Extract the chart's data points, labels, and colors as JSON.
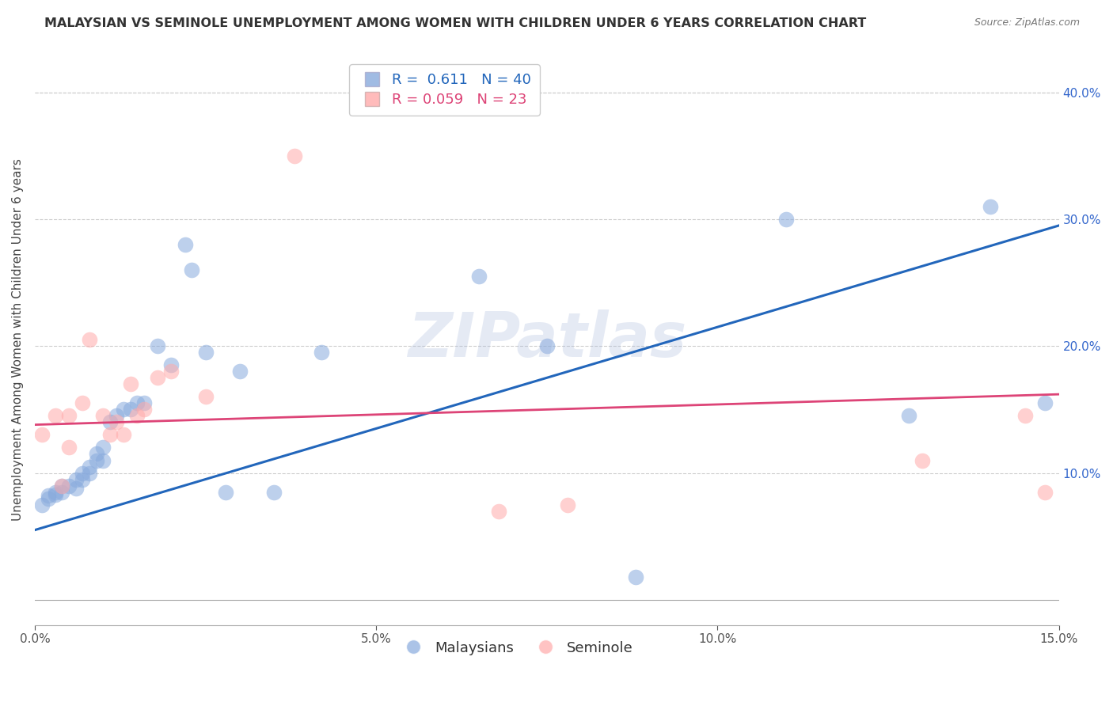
{
  "title": "MALAYSIAN VS SEMINOLE UNEMPLOYMENT AMONG WOMEN WITH CHILDREN UNDER 6 YEARS CORRELATION CHART",
  "source": "Source: ZipAtlas.com",
  "ylabel": "Unemployment Among Women with Children Under 6 years",
  "xlim": [
    0.0,
    0.15
  ],
  "ylim": [
    -0.02,
    0.43
  ],
  "yplot_min": 0.0,
  "yticks": [
    0.1,
    0.2,
    0.3,
    0.4
  ],
  "xticks": [
    0.0,
    0.05,
    0.1,
    0.15
  ],
  "blue_R": "0.611",
  "blue_N": "40",
  "pink_R": "0.059",
  "pink_N": "23",
  "blue_color": "#88aadd",
  "pink_color": "#ffaaaa",
  "blue_line_color": "#2266bb",
  "pink_line_color": "#dd4477",
  "watermark": "ZIPatlas",
  "blue_scatter_x": [
    0.001,
    0.002,
    0.002,
    0.003,
    0.003,
    0.004,
    0.004,
    0.005,
    0.006,
    0.006,
    0.007,
    0.007,
    0.008,
    0.008,
    0.009,
    0.009,
    0.01,
    0.01,
    0.011,
    0.012,
    0.013,
    0.014,
    0.015,
    0.016,
    0.018,
    0.02,
    0.022,
    0.023,
    0.025,
    0.028,
    0.03,
    0.035,
    0.042,
    0.065,
    0.075,
    0.088,
    0.11,
    0.128,
    0.14,
    0.148
  ],
  "blue_scatter_y": [
    0.075,
    0.08,
    0.082,
    0.083,
    0.085,
    0.085,
    0.09,
    0.09,
    0.088,
    0.095,
    0.095,
    0.1,
    0.1,
    0.105,
    0.11,
    0.115,
    0.11,
    0.12,
    0.14,
    0.145,
    0.15,
    0.15,
    0.155,
    0.155,
    0.2,
    0.185,
    0.28,
    0.26,
    0.195,
    0.085,
    0.18,
    0.085,
    0.195,
    0.255,
    0.2,
    0.018,
    0.3,
    0.145,
    0.31,
    0.155
  ],
  "pink_scatter_x": [
    0.001,
    0.003,
    0.004,
    0.005,
    0.005,
    0.007,
    0.008,
    0.01,
    0.011,
    0.012,
    0.013,
    0.014,
    0.015,
    0.016,
    0.018,
    0.02,
    0.025,
    0.038,
    0.068,
    0.078,
    0.13,
    0.145,
    0.148
  ],
  "pink_scatter_y": [
    0.13,
    0.145,
    0.09,
    0.145,
    0.12,
    0.155,
    0.205,
    0.145,
    0.13,
    0.14,
    0.13,
    0.17,
    0.145,
    0.15,
    0.175,
    0.18,
    0.16,
    0.35,
    0.07,
    0.075,
    0.11,
    0.145,
    0.085
  ],
  "blue_line_x0": 0.0,
  "blue_line_y0": 0.055,
  "blue_line_x1": 0.15,
  "blue_line_y1": 0.295,
  "pink_line_x0": 0.0,
  "pink_line_y0": 0.138,
  "pink_line_x1": 0.15,
  "pink_line_y1": 0.162
}
